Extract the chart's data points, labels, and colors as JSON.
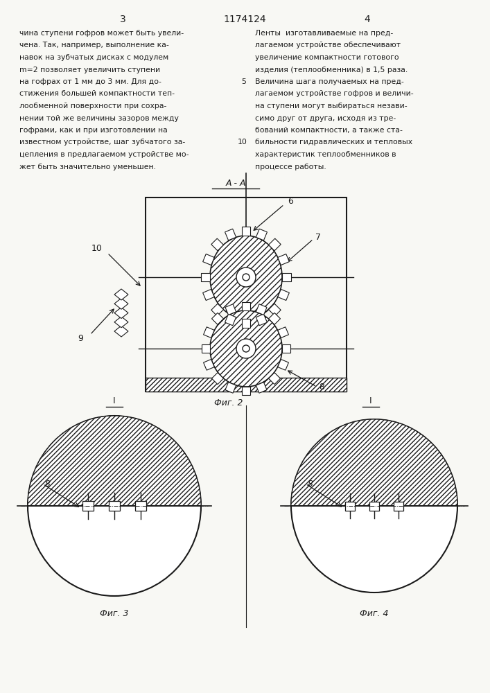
{
  "bg_color": "#f8f8f4",
  "page_num_left": "3",
  "patent_num": "1174124",
  "page_num_right": "4",
  "text_left": [
    "чина ступени гофров может быть увели-",
    "чена. Так, например, выполнение ка-",
    "навок на зубчатых дисках с модулем",
    "m=2 позволяет увеличить ступени",
    "на гофрах от 1 мм до 3 мм. Для до-",
    "стижения большей компактности теп-",
    "лообменной поверхности при сохра-",
    "нении той же величины зазоров между",
    "гофрами, как и при изготовлении на",
    "известном устройстве, шаг зубчатого за-",
    "цепления в предлагаемом устройстве мо-",
    "жет быть значительно уменьшен."
  ],
  "text_right": [
    "Ленты  изготавливаемые на пред-",
    "лагаемом устройстве обеспечивают",
    "увеличение компактности готового",
    "изделия (теплообменника) в 1,5 раза.",
    "Величина шага получаемых на пред-",
    "лагаемом устройстве гофров и величи-",
    "на ступени могут выбираться незави-",
    "симо друг от друга, исходя из тре-",
    "бований компактности, а также ста-",
    "бильности гидравлических и тепловых",
    "характеристик теплообменников в",
    "процессе работы."
  ],
  "line_num_5_at_line": 4,
  "line_num_10_at_line": 9,
  "fig2_label": "А - А",
  "fig2_caption": "Фиг. 2",
  "fig3_caption": "Фиг. 3",
  "fig4_caption": "Фиг. 4",
  "label_6": "6",
  "label_7": "7",
  "label_8": "8",
  "label_9": "9",
  "label_10": "10",
  "section_label": "I",
  "line_color": "#1a1a1a",
  "text_color": "#1a1a1a"
}
